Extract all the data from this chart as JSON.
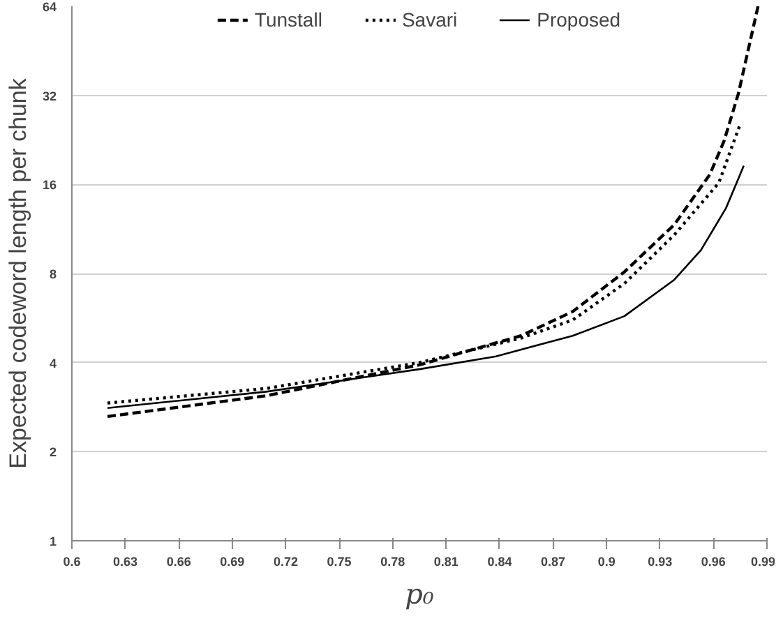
{
  "chart_data": {
    "type": "line",
    "xlabel": "p₀",
    "ylabel": "Expected codeword length per chunk",
    "log": "y",
    "grid": "y",
    "legend": "top",
    "marker": "none",
    "xlim": [
      0.6,
      0.99
    ],
    "xticks": [
      0.6,
      0.63,
      0.66,
      0.69,
      0.72,
      0.75,
      0.78,
      0.81,
      0.84,
      0.87,
      0.9,
      0.93,
      0.96,
      0.99
    ],
    "ylim": [
      1,
      64
    ],
    "yticks": [
      1,
      2,
      4,
      8,
      16,
      32,
      64
    ],
    "series": [
      {
        "name": "Tunstall",
        "color": "#000000",
        "line_style": "dashed",
        "x": [
          0.62,
          0.709,
          0.795,
          0.852,
          0.881,
          0.91,
          0.938,
          0.958,
          0.966,
          0.974,
          0.985
        ],
        "values": [
          2.63,
          3.09,
          3.93,
          4.93,
          5.95,
          8.1,
          11.7,
          17.3,
          22.5,
          32.5,
          64
        ]
      },
      {
        "name": "Savari",
        "color": "#000000",
        "line_style": "dotted",
        "x": [
          0.62,
          0.709,
          0.795,
          0.852,
          0.881,
          0.91,
          0.938,
          0.963,
          0.975
        ],
        "values": [
          2.92,
          3.27,
          4.0,
          4.84,
          5.57,
          7.4,
          10.8,
          16.2,
          25.6
        ]
      },
      {
        "name": "Proposed",
        "color": "#000000",
        "line_style": "solid",
        "x": [
          0.62,
          0.709,
          0.795,
          0.838,
          0.881,
          0.91,
          0.938,
          0.953,
          0.967,
          0.977
        ],
        "values": [
          2.81,
          3.19,
          3.8,
          4.2,
          4.93,
          5.74,
          7.62,
          9.6,
          13.3,
          18.5
        ]
      }
    ]
  }
}
